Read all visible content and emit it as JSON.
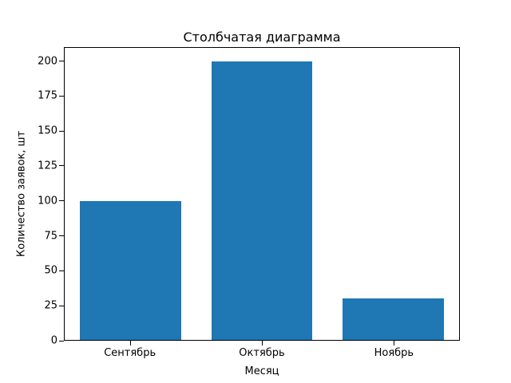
{
  "chart_data": {
    "type": "bar",
    "title": "Столбчатая диаграмма",
    "xlabel": "Месяц",
    "ylabel": "Количество заявок, шт",
    "categories": [
      "Сентябрь",
      "Октябрь",
      "Ноябрь"
    ],
    "values": [
      100,
      200,
      30
    ],
    "ylim": [
      0,
      210
    ],
    "yticks": [
      0,
      25,
      50,
      75,
      100,
      125,
      150,
      175,
      200
    ],
    "bar_color": "#1f77b4",
    "grid": false,
    "background": "#ffffff"
  }
}
